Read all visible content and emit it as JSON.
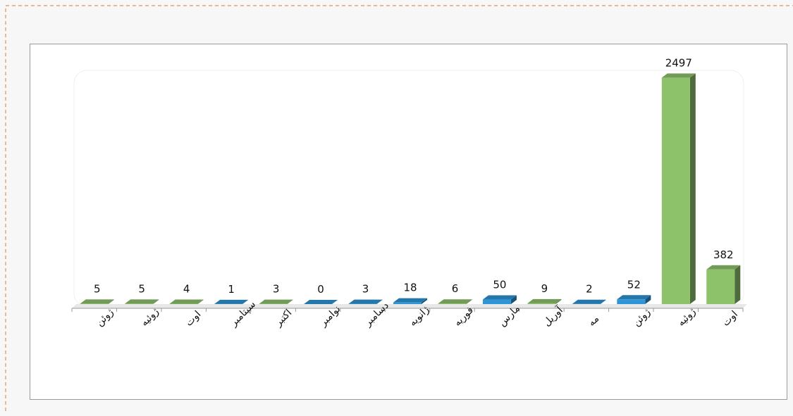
{
  "chart_data": {
    "type": "bar3d",
    "categories": [
      "ژوئن",
      "ژوئیه",
      "اوت",
      "سپتامبر",
      "اکتبر",
      "نوامبر",
      "دسامبر",
      "ژانویه",
      "فوریه",
      "مارس",
      "آوریل",
      "مه",
      "ژوئن",
      "ژوئیه",
      "اوت"
    ],
    "values": [
      5,
      5,
      4,
      1,
      3,
      0,
      3,
      18,
      6,
      50,
      9,
      2,
      52,
      2497,
      382
    ],
    "colors": [
      "#8dc26b",
      "#8dc26b",
      "#8dc26b",
      "#2e95d6",
      "#8dc26b",
      "#2e95d6",
      "#2e95d6",
      "#2e95d6",
      "#8dc26b",
      "#2e95d6",
      "#8dc26b",
      "#2e95d6",
      "#2e95d6",
      "#8dc26b",
      "#8dc26b"
    ],
    "ylim": [
      0,
      2500
    ]
  }
}
